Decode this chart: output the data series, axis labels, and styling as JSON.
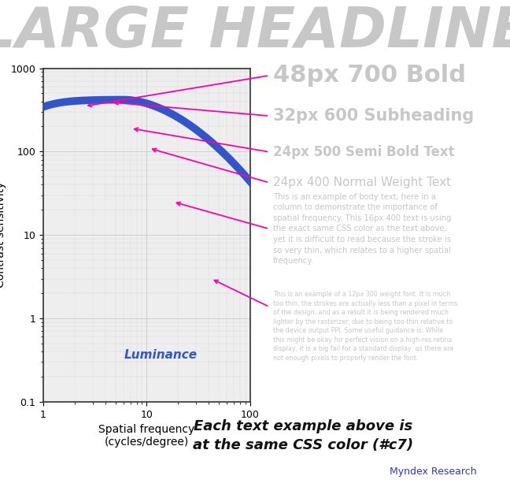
{
  "title": "LARGE HEADLINE",
  "title_color": "#c7c7c7",
  "title_fontsize": 52,
  "bg_color": "#ffffff",
  "border_color": "#3333cc",
  "curve_color": "#3355cc",
  "curve_linewidth": 7,
  "xlabel": "Spatial frequency\n(cycles/degree)",
  "ylabel": "Contrast sensitivity",
  "luminance_label": "Luminance",
  "luminance_color": "#3355cc",
  "grid_color": "#cccccc",
  "arrow_color": "#ff00aa",
  "xlim": [
    1,
    100
  ],
  "ylim": [
    0.1,
    1000
  ],
  "text_color": "#c7c7c7",
  "body16_text": "This is an example of body text, here in a\ncolumn to demonstrate the importance of\nspatial frequency. This 16px 400 text is using\nthe exact same CSS color as the text above,\nyet it is difficult to read because the stroke is\nso very thin, which relates to a higher spatial\nfrequency.",
  "body12_text": "This is an example of a 12px 300 weight font. It is much\ntoo thin, the strokes are actually less than a pixel in terms\nof the design, and as a result it is being rendered much\nlighter by the rasterizer, due to being too thin relative to\nthe device output PPI. Some useful guidance is: While\nthis might be okay for perfect vision on a high-res retina\ndisplay, it is a big fail for a standard display, as there are\nnot enough pixels to properly render the font.",
  "footer_text": "Each text example above is\nat the same CSS color (#c7)",
  "footer_fontsize": 13,
  "credit_text": "Myndex Research",
  "credit_color": "#3333cc",
  "credit_fontsize": 9,
  "arrow_data": [
    [
      0.528,
      0.845,
      2.5,
      350
    ],
    [
      0.528,
      0.762,
      4.5,
      390
    ],
    [
      0.528,
      0.688,
      7.0,
      190
    ],
    [
      0.528,
      0.625,
      10.5,
      110
    ],
    [
      0.528,
      0.53,
      18.0,
      25
    ],
    [
      0.528,
      0.37,
      42.0,
      3.0
    ]
  ]
}
